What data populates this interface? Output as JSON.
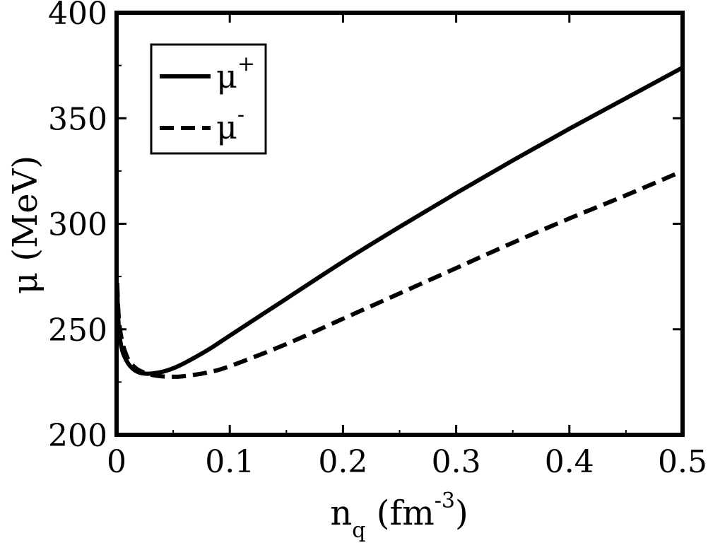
{
  "chart_data": {
    "type": "line",
    "xlabel": {
      "main": "n",
      "sub": "q",
      "unit_open": " (fm",
      "unit_sup": "-3",
      "unit_close": ")"
    },
    "ylabel": "μ (MeV)",
    "xlim": [
      0,
      0.5
    ],
    "ylim": [
      200,
      400
    ],
    "x_ticks": [
      0,
      0.1,
      0.2,
      0.3,
      0.4,
      0.5
    ],
    "x_tick_labels": [
      "0",
      "0.1",
      "0.2",
      "0.3",
      "0.4",
      "0.5"
    ],
    "y_ticks": [
      200,
      250,
      300,
      350,
      400
    ],
    "y_tick_labels": [
      "200",
      "250",
      "300",
      "350",
      "400"
    ],
    "grid": false,
    "legend": {
      "placement": "top-left"
    },
    "series": [
      {
        "name": "μ+",
        "name_base": "μ",
        "name_sup": "+",
        "style": "solid",
        "color": "#000000",
        "x": [
          0.0005,
          0.002,
          0.005,
          0.01,
          0.015,
          0.02,
          0.025,
          0.03,
          0.04,
          0.05,
          0.06,
          0.08,
          0.1,
          0.15,
          0.2,
          0.25,
          0.3,
          0.35,
          0.4,
          0.45,
          0.5
        ],
        "y": [
          270,
          250,
          240,
          234,
          231,
          229.5,
          229,
          229,
          229.8,
          231.5,
          234,
          240,
          247,
          264.5,
          282,
          298.5,
          314.5,
          330,
          345,
          359.5,
          374
        ]
      },
      {
        "name": "μ-",
        "name_base": "μ",
        "name_sup": "-",
        "style": "dashed",
        "color": "#000000",
        "x": [
          0.0005,
          0.002,
          0.005,
          0.01,
          0.015,
          0.02,
          0.03,
          0.04,
          0.05,
          0.06,
          0.08,
          0.1,
          0.15,
          0.2,
          0.25,
          0.3,
          0.35,
          0.4,
          0.45,
          0.5
        ],
        "y": [
          272,
          255,
          244,
          236,
          232.5,
          230.5,
          228.5,
          227.7,
          227.5,
          227.8,
          229.5,
          232.5,
          243,
          255,
          267,
          279,
          291,
          302.5,
          313.5,
          325
        ]
      }
    ]
  }
}
